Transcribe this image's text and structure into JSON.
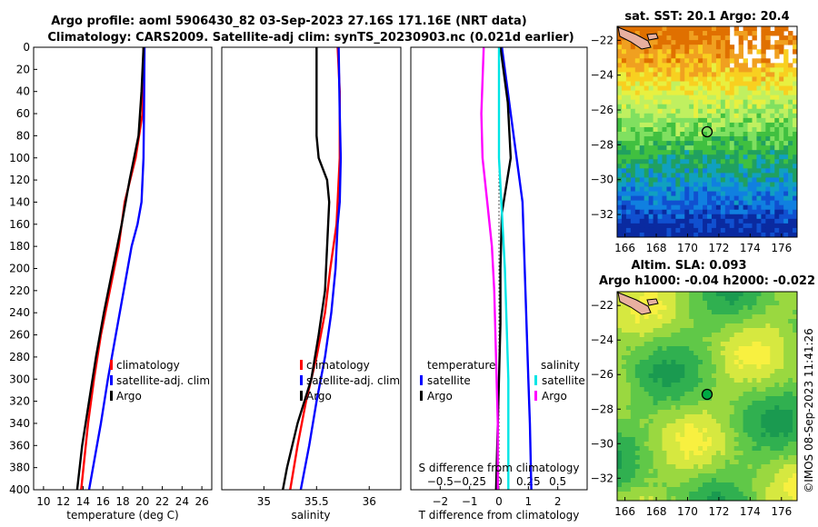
{
  "header": {
    "title_line1": "Argo profile: aoml 5906430_82 03-Sep-2023 27.16S 171.16E (NRT data)",
    "title_line2": "Climatology: CARS2009. Satellite-adj clim: synTS_20230903.nc (0.021d earlier)"
  },
  "colors": {
    "climatology": "#ff0000",
    "satellite": "#0000ff",
    "argo": "#000000",
    "t_sat": "#0000ff",
    "s_sat": "#00e5e5",
    "s_argo": "#ff00ff"
  },
  "chart_data": [
    {
      "id": "temperature-profile",
      "type": "line",
      "xlabel": "temperature (deg C)",
      "xlim": [
        9,
        27
      ],
      "ylim": [
        0,
        400
      ],
      "y_inverted": true,
      "xticks": [
        10,
        12,
        14,
        16,
        18,
        20,
        22,
        24,
        26
      ],
      "yticks": [
        0,
        20,
        40,
        60,
        80,
        100,
        120,
        140,
        160,
        180,
        200,
        220,
        240,
        260,
        280,
        300,
        320,
        340,
        360,
        380,
        400
      ],
      "legend": [
        "climatology",
        "satellite-adj. clim",
        "Argo"
      ],
      "legend_position": "lower-right",
      "series": [
        {
          "name": "climatology",
          "color": "#ff0000",
          "depth": [
            0,
            60,
            100,
            140,
            180,
            220,
            260,
            300,
            340,
            400
          ],
          "values": [
            20.1,
            20.0,
            19.3,
            18.2,
            17.6,
            16.7,
            15.8,
            15.1,
            14.5,
            13.8
          ]
        },
        {
          "name": "satellite-adj. clim",
          "color": "#0000ff",
          "depth": [
            0,
            60,
            100,
            140,
            160,
            180,
            220,
            260,
            300,
            340,
            400
          ],
          "values": [
            20.2,
            20.15,
            20.1,
            19.9,
            19.5,
            18.9,
            18.1,
            17.3,
            16.5,
            15.8,
            14.6
          ]
        },
        {
          "name": "Argo",
          "color": "#000000",
          "depth": [
            0,
            40,
            80,
            120,
            160,
            200,
            240,
            280,
            320,
            360,
            400
          ],
          "values": [
            20.1,
            19.9,
            19.6,
            18.7,
            17.9,
            17.0,
            16.1,
            15.3,
            14.6,
            13.9,
            13.4
          ]
        }
      ]
    },
    {
      "id": "salinity-profile",
      "type": "line",
      "xlabel": "salinity",
      "xlim": [
        34.6,
        36.3
      ],
      "ylim": [
        0,
        400
      ],
      "y_inverted": true,
      "xticks": [
        35,
        35.5,
        36
      ],
      "legend": [
        "climatology",
        "satellite-adj. clim",
        "Argo"
      ],
      "legend_position": "lower-right",
      "series": [
        {
          "name": "climatology",
          "color": "#ff0000",
          "depth": [
            0,
            40,
            100,
            160,
            200,
            240,
            280,
            320,
            360,
            400
          ],
          "values": [
            35.7,
            35.72,
            35.72,
            35.69,
            35.63,
            35.58,
            35.5,
            35.4,
            35.32,
            35.25
          ]
        },
        {
          "name": "satellite-adj. clim",
          "color": "#0000ff",
          "depth": [
            0,
            60,
            100,
            140,
            160,
            200,
            240,
            280,
            320,
            360,
            400
          ],
          "values": [
            35.71,
            35.72,
            35.73,
            35.72,
            35.7,
            35.68,
            35.64,
            35.58,
            35.5,
            35.43,
            35.35
          ]
        },
        {
          "name": "Argo",
          "color": "#000000",
          "depth": [
            0,
            40,
            80,
            100,
            120,
            140,
            180,
            220,
            260,
            300,
            340,
            380,
            400
          ],
          "values": [
            35.5,
            35.5,
            35.5,
            35.52,
            35.6,
            35.62,
            35.6,
            35.58,
            35.52,
            35.45,
            35.32,
            35.22,
            35.18
          ]
        }
      ]
    },
    {
      "id": "difference-profile",
      "type": "line",
      "xlabel": "T difference from climatology",
      "xlabel_top": "S difference from climatology",
      "xlim": [
        -3,
        3
      ],
      "ylim": [
        0,
        400
      ],
      "y_inverted": true,
      "xticks": [
        -2,
        -1,
        0,
        1,
        2
      ],
      "xticks_S": [
        -0.5,
        -0.25,
        0,
        0.25,
        0.5
      ],
      "legend_temperature": {
        "title": "temperature",
        "items": [
          "satellite",
          "Argo"
        ]
      },
      "legend_salinity": {
        "title": "salinity",
        "items": [
          "satellite",
          "Argo"
        ]
      },
      "series": [
        {
          "name": "temperature satellite",
          "color": "#0000ff",
          "depth": [
            0,
            40,
            100,
            140,
            180,
            220,
            260,
            300,
            340,
            400
          ],
          "values": [
            0.1,
            0.3,
            0.6,
            0.8,
            0.85,
            0.9,
            0.95,
            1.0,
            1.05,
            1.1
          ]
        },
        {
          "name": "temperature Argo",
          "color": "#000000",
          "depth": [
            0,
            50,
            100,
            150,
            200,
            250,
            300,
            350,
            400
          ],
          "values": [
            0.05,
            0.3,
            0.4,
            0.1,
            0.05,
            0.05,
            0.0,
            -0.05,
            -0.1
          ]
        },
        {
          "name": "salinity satellite",
          "color": "#00e5e5",
          "depth": [
            0,
            100,
            200,
            300,
            400
          ],
          "values": [
            0.0,
            0.0,
            0.05,
            0.08,
            0.08
          ]
        },
        {
          "name": "salinity Argo",
          "color": "#ff00ff",
          "depth": [
            0,
            60,
            100,
            140,
            180,
            220,
            260,
            300,
            340,
            400
          ],
          "values": [
            -0.13,
            -0.15,
            -0.14,
            -0.1,
            -0.06,
            -0.04,
            -0.03,
            -0.02,
            -0.01,
            -0.01
          ]
        }
      ]
    },
    {
      "id": "sst-map",
      "type": "heatmap",
      "title": "sat. SST: 20.1 Argo: 20.4",
      "xlim": [
        165.5,
        177
      ],
      "ylim": [
        -33.3,
        -21.2
      ],
      "xticks": [
        166,
        168,
        170,
        172,
        174,
        176
      ],
      "yticks": [
        -22,
        -24,
        -26,
        -28,
        -30,
        -32
      ],
      "argo_position": {
        "lon": 171.16,
        "lat": -27.16
      }
    },
    {
      "id": "sla-map",
      "type": "heatmap",
      "title_line1": "Altim. SLA: 0.093",
      "title_line2": "Argo h1000: -0.04 h2000: -0.022",
      "xlim": [
        165.5,
        177
      ],
      "ylim": [
        -33.3,
        -21.2
      ],
      "xticks": [
        166,
        168,
        170,
        172,
        174,
        176
      ],
      "yticks": [
        -22,
        -24,
        -26,
        -28,
        -30,
        -32
      ],
      "argo_position": {
        "lon": 171.16,
        "lat": -27.16
      }
    }
  ],
  "credit": "©IMOS 08-Sep-2023 11:41:26"
}
